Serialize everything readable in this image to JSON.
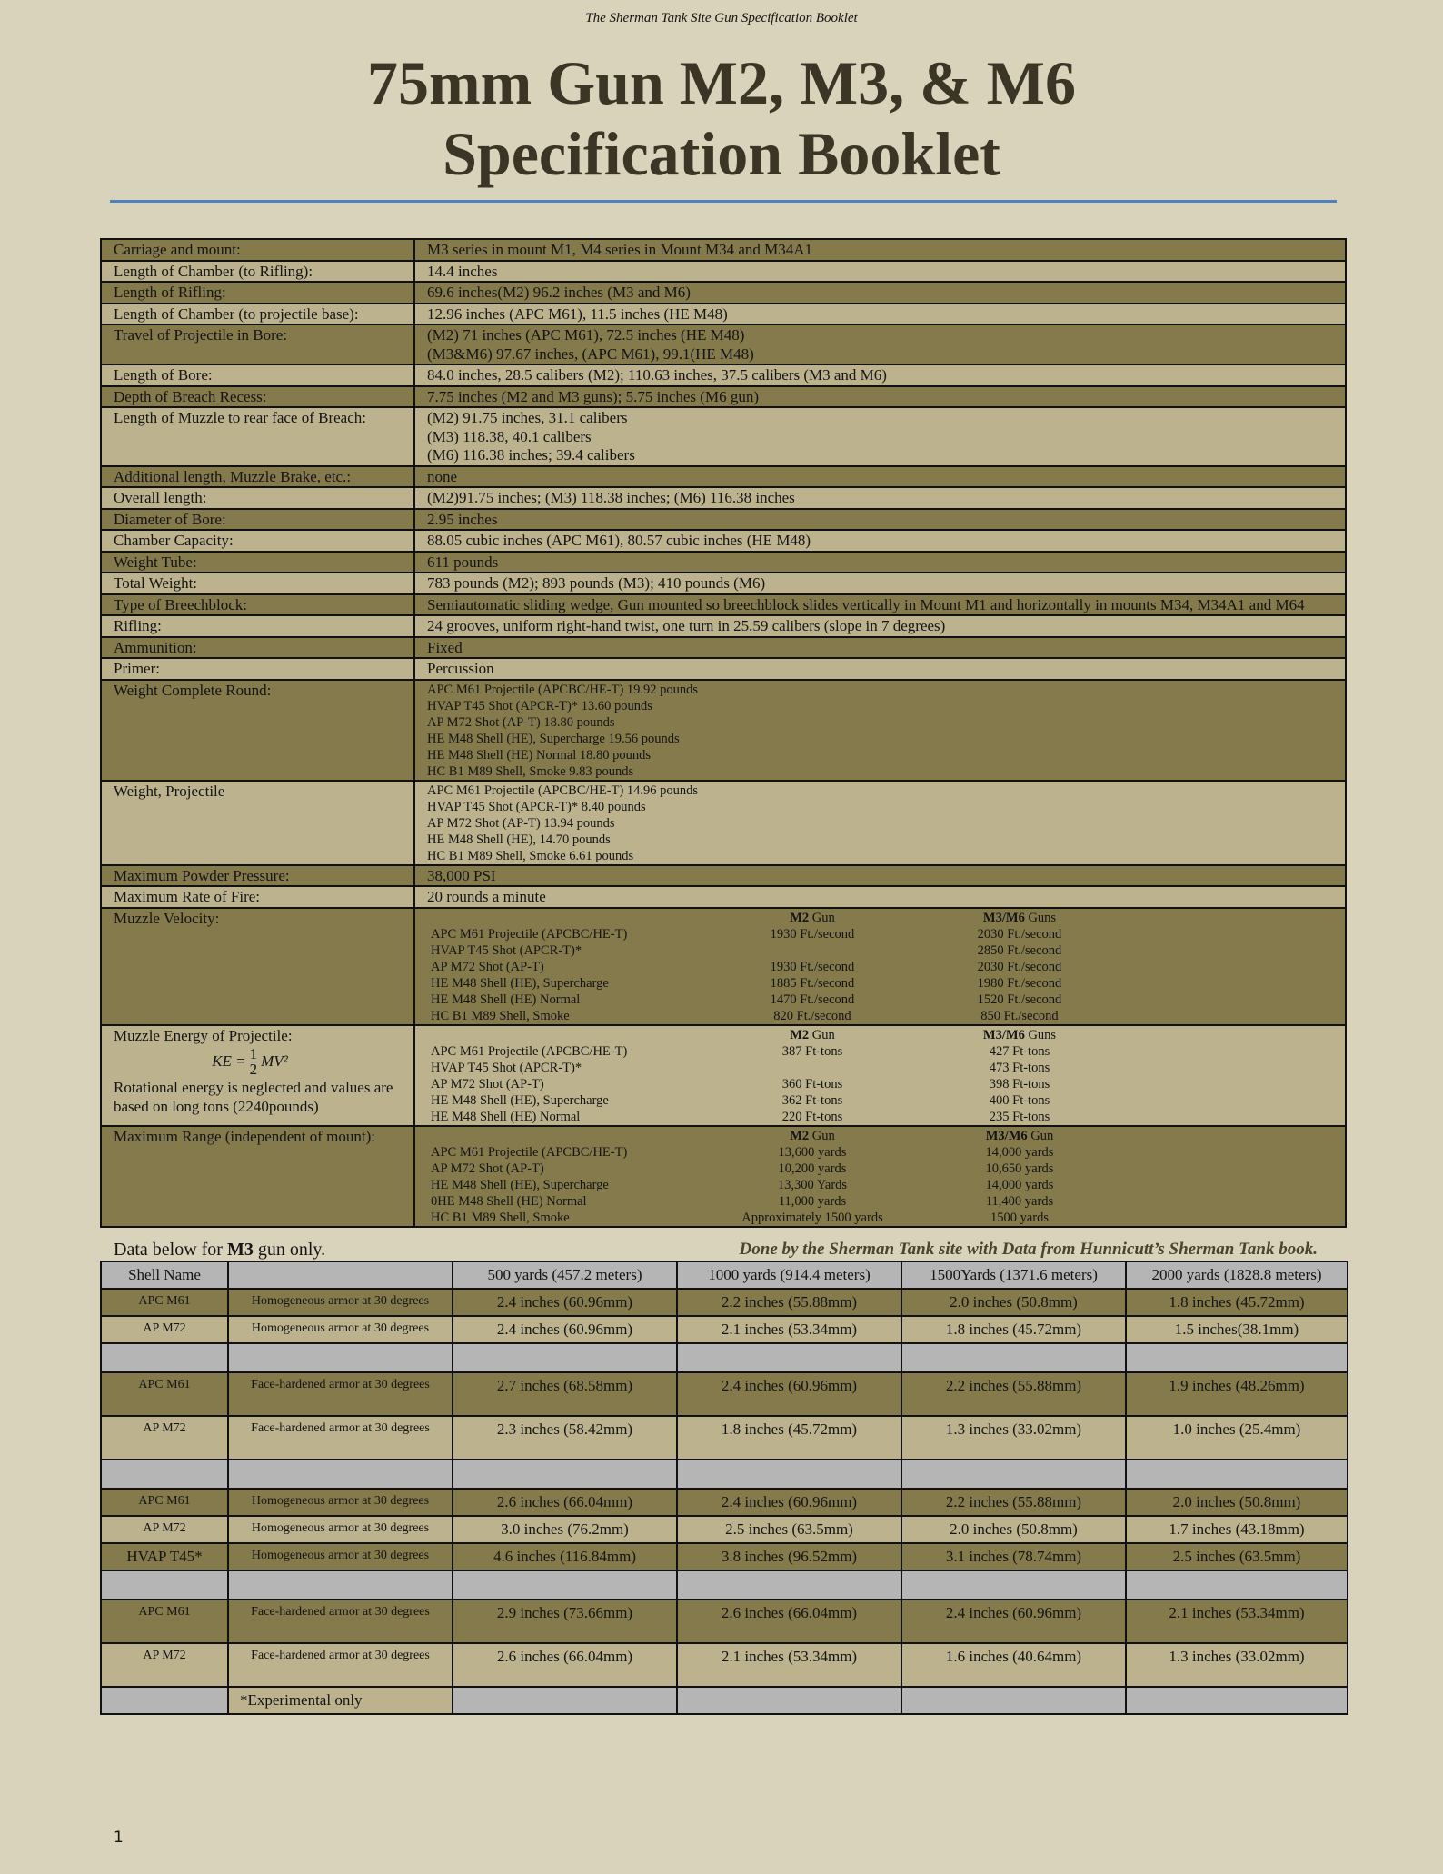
{
  "running_header": "The Sherman Tank Site Gun Specification Booklet",
  "title_line1": "75mm Gun M2, M3, & M6",
  "title_line2": "Specification Booklet",
  "colors": {
    "dark_row": "#857a4c",
    "light_row": "#bcb38e",
    "gray_row": "#b5b5b5",
    "page": "#d9d3bc",
    "rule": "#4f81bd"
  },
  "specs": [
    {
      "label": "Carriage and mount:",
      "lines": [
        "M3 series in mount M1, M4 series in Mount M34 and M34A1"
      ]
    },
    {
      "label": "Length of Chamber (to Rifling):",
      "lines": [
        "14.4 inches"
      ]
    },
    {
      "label": "Length of Rifling:",
      "lines": [
        "69.6 inches(M2) 96.2 inches (M3 and M6)"
      ]
    },
    {
      "label": "Length of Chamber (to projectile base):",
      "lines": [
        "12.96 inches (APC M61), 11.5 inches (HE M48)"
      ]
    },
    {
      "label": "Travel of Projectile in Bore:",
      "lines": [
        "(M2) 71 inches (APC M61), 72.5 inches (HE M48)",
        "(M3&M6) 97.67 inches, (APC M61), 99.1(HE M48)"
      ]
    },
    {
      "label": "Length of Bore:",
      "lines": [
        "84.0 inches, 28.5 calibers (M2); 110.63 inches, 37.5 calibers (M3 and M6)"
      ]
    },
    {
      "label": "Depth of Breach Recess:",
      "lines": [
        "7.75 inches (M2 and M3 guns); 5.75 inches (M6 gun)"
      ]
    },
    {
      "label": "Length of Muzzle to rear face of Breach:",
      "lines": [
        "(M2) 91.75 inches, 31.1 calibers",
        "(M3) 118.38, 40.1 calibers",
        "(M6) 116.38 inches; 39.4 calibers"
      ]
    },
    {
      "label": "Additional length, Muzzle Brake, etc.:",
      "lines": [
        "none"
      ]
    },
    {
      "label": "Overall length:",
      "lines": [
        "(M2)91.75 inches; (M3) 118.38 inches; (M6) 116.38 inches"
      ]
    },
    {
      "label": "Diameter of Bore:",
      "lines": [
        "2.95 inches"
      ]
    },
    {
      "label": "Chamber Capacity:",
      "lines": [
        "88.05 cubic inches (APC M61), 80.57 cubic inches (HE M48)"
      ]
    },
    {
      "label": "Weight Tube:",
      "lines": [
        "611 pounds"
      ]
    },
    {
      "label": "Total Weight:",
      "lines": [
        "783 pounds (M2); 893 pounds (M3); 410 pounds (M6)"
      ]
    },
    {
      "label": "Type of Breechblock:",
      "lines": [
        "Semiautomatic sliding wedge, Gun mounted so breechblock slides vertically in Mount M1 and horizontally in mounts M34, M34A1 and M64"
      ]
    },
    {
      "label": "Rifling:",
      "lines": [
        "24 grooves, uniform right-hand twist, one turn in 25.59 calibers (slope in 7 degrees)"
      ]
    },
    {
      "label": "Ammunition:",
      "lines": [
        "Fixed"
      ]
    },
    {
      "label": "Primer:",
      "lines": [
        "Percussion"
      ]
    },
    {
      "label": "Weight Complete Round:",
      "small": true,
      "lines": [
        "APC M61 Projectile (APCBC/HE-T) 19.92 pounds",
        "HVAP T45 Shot (APCR-T)* 13.60 pounds",
        "AP M72 Shot (AP-T) 18.80 pounds",
        "HE M48 Shell (HE), Supercharge 19.56 pounds",
        "HE M48 Shell (HE) Normal 18.80 pounds",
        "HC B1 M89 Shell, Smoke 9.83 pounds"
      ]
    },
    {
      "label": "Weight, Projectile",
      "small": true,
      "lines": [
        "APC M61 Projectile (APCBC/HE-T) 14.96 pounds",
        "HVAP T45 Shot (APCR-T)* 8.40 pounds",
        "AP M72 Shot (AP-T) 13.94 pounds",
        "HE M48 Shell (HE), 14.70 pounds",
        "HC B1 M89 Shell, Smoke 6.61 pounds"
      ]
    },
    {
      "label": "Maximum Powder Pressure:",
      "lines": [
        "38,000 PSI"
      ]
    },
    {
      "label": "Maximum Rate of Fire:",
      "lines": [
        "20 rounds a minute"
      ]
    },
    {
      "label": "Muzzle Velocity:",
      "grid": {
        "head": [
          [
            "M2",
            " Gun"
          ],
          [
            "M3/M6",
            " Guns"
          ]
        ],
        "rows": [
          [
            "APC M61 Projectile (APCBC/HE-T)",
            "1930 Ft./second",
            "2030 Ft./second"
          ],
          [
            "HVAP T45 Shot (APCR-T)*",
            "",
            "2850 Ft./second"
          ],
          [
            "AP M72 Shot (AP-T)",
            "1930 Ft./second",
            "2030 Ft./second"
          ],
          [
            "HE M48 Shell (HE),  Supercharge",
            "1885 Ft./second",
            "1980 Ft./second"
          ],
          [
            "HE M48 Shell (HE) Normal",
            "1470 Ft./second",
            "1520 Ft./second"
          ],
          [
            "HC B1 M89 Shell, Smoke",
            "820 Ft./second",
            "850 Ft./second"
          ]
        ]
      }
    },
    {
      "label": "Muzzle Energy of Projectile:",
      "formula": {
        "lhs": "KE = ",
        "num": "1",
        "den": "2",
        "rhs": "MV²"
      },
      "label_note": "Rotational energy is neglected and values are based on long tons (2240pounds)",
      "grid": {
        "head": [
          [
            "M2",
            " Gun"
          ],
          [
            "M3/M6",
            " Guns"
          ]
        ],
        "rows": [
          [
            "APC M61 Projectile (APCBC/HE-T)",
            "387 Ft-tons",
            "427 Ft-tons"
          ],
          [
            "HVAP T45 Shot (APCR-T)*",
            "",
            "473 Ft-tons"
          ],
          [
            "AP M72 Shot (AP-T)",
            "360 Ft-tons",
            "398 Ft-tons"
          ],
          [
            "HE M48 Shell (HE), Supercharge",
            "362 Ft-tons",
            "400 Ft-tons"
          ],
          [
            "HE M48 Shell (HE) Normal",
            "220 Ft-tons",
            "235 Ft-tons"
          ]
        ]
      }
    },
    {
      "label": "Maximum Range (independent of mount):",
      "grid": {
        "head": [
          [
            "M2",
            " Gun"
          ],
          [
            "M3/M6",
            " Gun"
          ]
        ],
        "rows": [
          [
            "APC M61 Projectile (APCBC/HE-T)",
            "13,600 yards",
            "14,000 yards"
          ],
          [
            "AP M72 Shot (AP-T)",
            "10,200 yards",
            "10,650 yards"
          ],
          [
            "HE M48 Shell (HE), Supercharge",
            "13,300 Yards",
            "14,000 yards"
          ],
          [
            "0HE M48 Shell (HE) Normal",
            "11,000 yards",
            "11,400 yards"
          ],
          [
            "HC B1 M89 Shell, Smoke",
            "Approximately  1500 yards",
            "1500 yards"
          ]
        ]
      }
    }
  ],
  "note": {
    "prefix": "Data below for ",
    "gun": "M3",
    "suffix": " gun only.",
    "credit": "Done by the Sherman Tank site with Data from Hunnicutt’s Sherman Tank book."
  },
  "penetration": {
    "headers": [
      "Shell Name",
      "",
      "500 yards (457.2 meters)",
      "1000 yards  (914.4 meters)",
      "1500Yards  (1371.6 meters)",
      "2000 yards (1828.8 meters)"
    ],
    "rows": [
      {
        "tone": "dark",
        "cells": [
          "APC M61",
          "Homogeneous armor at 30 degrees",
          "2.4 inches (60.96mm)",
          "2.2 inches (55.88mm)",
          "2.0 inches (50.8mm)",
          "1.8 inches (45.72mm)"
        ]
      },
      {
        "tone": "light",
        "cells": [
          "AP M72",
          "Homogeneous armor at 30 degrees",
          "2.4 inches (60.96mm)",
          "2.1 inches (53.34mm)",
          "1.8 inches (45.72mm)",
          "1.5 inches(38.1mm)"
        ]
      },
      {
        "tone": "gray",
        "cells": [
          "",
          "",
          "",
          "",
          "",
          ""
        ]
      },
      {
        "tone": "dark",
        "two": true,
        "cells": [
          "APC M61",
          "Face-hardened  armor at 30 degrees",
          "2.7 inches (68.58mm)",
          "2.4 inches (60.96mm)",
          "2.2 inches (55.88mm)",
          "1.9 inches (48.26mm)"
        ]
      },
      {
        "tone": "light",
        "two": true,
        "cells": [
          "AP M72",
          "Face-hardened  armor at 30 degrees",
          "2.3 inches (58.42mm)",
          "1.8 inches (45.72mm)",
          "1.3 inches (33.02mm)",
          "1.0 inches (25.4mm)"
        ]
      },
      {
        "tone": "gray",
        "cells": [
          "",
          "",
          "",
          "",
          "",
          ""
        ]
      },
      {
        "tone": "dark",
        "cells": [
          "APC M61",
          "Homogeneous armor at 30 degrees",
          "2.6 inches (66.04mm)",
          "2.4 inches (60.96mm)",
          "2.2 inches (55.88mm)",
          "2.0 inches (50.8mm)"
        ]
      },
      {
        "tone": "light",
        "cells": [
          "AP M72",
          "Homogeneous armor at 30 degrees",
          "3.0 inches (76.2mm)",
          "2.5 inches (63.5mm)",
          "2.0 inches (50.8mm)",
          "1.7 inches (43.18mm)"
        ]
      },
      {
        "tone": "dark",
        "big_first": true,
        "cells": [
          "HVAP T45*",
          "Homogeneous armor at 30 degrees",
          "4.6 inches (116.84mm)",
          "3.8 inches (96.52mm)",
          "3.1 inches (78.74mm)",
          "2.5 inches (63.5mm)"
        ]
      },
      {
        "tone": "gray",
        "cells": [
          "",
          "",
          "",
          "",
          "",
          ""
        ]
      },
      {
        "tone": "dark",
        "two": true,
        "cells": [
          "APC M61",
          "Face-hardened  armor at 30 degrees",
          "2.9 inches (73.66mm)",
          "2.6 inches (66.04mm)",
          "2.4 inches (60.96mm)",
          "2.1 inches (53.34mm)"
        ]
      },
      {
        "tone": "light",
        "two": true,
        "cells": [
          "AP M72",
          "Face-hardened  armor at 30 degrees",
          "2.6 inches (66.04mm)",
          "2.1 inches (53.34mm)",
          "1.6 inches (40.64mm)",
          "1.3 inches (33.02mm)"
        ]
      },
      {
        "tone": "gray",
        "footnote": true,
        "cells": [
          "",
          "*Experimental only",
          "",
          "",
          "",
          ""
        ]
      }
    ]
  },
  "page_number": "1"
}
